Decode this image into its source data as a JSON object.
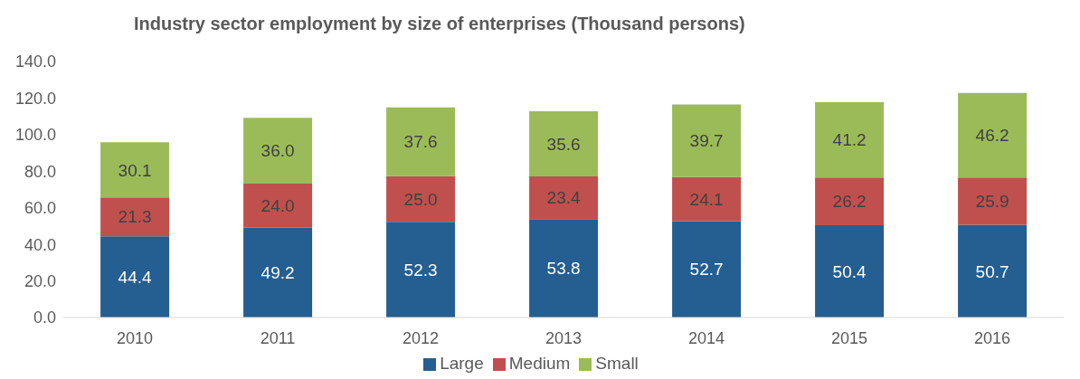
{
  "chart_data": {
    "type": "bar",
    "title": "Industry sector employment by size of enterprises (Thousand persons)",
    "categories": [
      "2010",
      "2011",
      "2012",
      "2013",
      "2014",
      "2015",
      "2016"
    ],
    "stacked": true,
    "series": [
      {
        "name": "Large",
        "color": "#255e91",
        "values": [
          44.4,
          49.2,
          52.3,
          53.8,
          52.7,
          50.4,
          50.7
        ],
        "value_labels": [
          "44.4",
          "49.2",
          "52.3",
          "53.8",
          "52.7",
          "50.4",
          "50.7"
        ]
      },
      {
        "name": "Medium",
        "color": "#c0504d",
        "values": [
          21.3,
          24.0,
          25.0,
          23.4,
          24.1,
          26.2,
          25.9
        ],
        "value_labels": [
          "21.3",
          "24.0",
          "25.0",
          "23.4",
          "24.1",
          "26.2",
          "25.9"
        ]
      },
      {
        "name": "Small",
        "color": "#9bbb59",
        "values": [
          30.1,
          36.0,
          37.6,
          35.6,
          39.7,
          41.2,
          46.2
        ],
        "value_labels": [
          "30.1",
          "36.0",
          "37.6",
          "35.6",
          "39.7",
          "41.2",
          "46.2"
        ]
      }
    ],
    "ylim": [
      0,
      140
    ],
    "yticks": [
      {
        "value": 0,
        "label": "0.0"
      },
      {
        "value": 20,
        "label": "20.0"
      },
      {
        "value": 40,
        "label": "40.0"
      },
      {
        "value": 60,
        "label": "60.0"
      },
      {
        "value": 80,
        "label": "80.0"
      },
      {
        "value": 100,
        "label": "100.0"
      },
      {
        "value": 120,
        "label": "120.0"
      },
      {
        "value": 140,
        "label": "140.0"
      }
    ],
    "grid": false,
    "legend": "bottom"
  }
}
